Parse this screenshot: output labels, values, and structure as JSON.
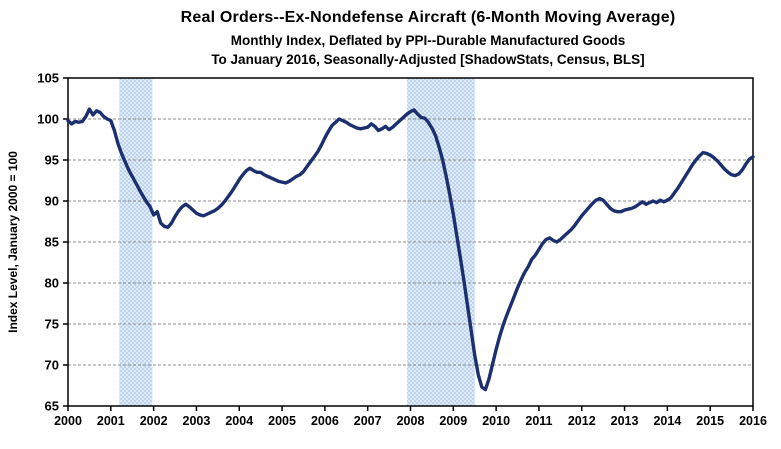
{
  "header": {
    "title": "Real Orders--Ex-Nondefense Aircraft (6-Month Moving Average)",
    "subtitle1": "Monthly Index, Deflated by PPI--Durable Manufactured Goods",
    "subtitle2": "To January 2016, Seasonally-Adjusted [ShadowStats, Census, BLS]"
  },
  "chart_data": {
    "type": "line",
    "title": "Real Orders--Ex-Nondefense Aircraft (6-Month Moving Average)",
    "subtitle": "Monthly Index, Deflated by PPI--Durable Manufactured Goods; To January 2016, Seasonally-Adjusted [ShadowStats, Census, BLS]",
    "xlabel": "",
    "ylabel": "Index Level, January 2000 = 100",
    "xlim": [
      2000,
      2016
    ],
    "ylim": [
      65,
      105
    ],
    "x_ticks": [
      2000,
      2001,
      2002,
      2003,
      2004,
      2005,
      2006,
      2007,
      2008,
      2009,
      2010,
      2011,
      2012,
      2013,
      2014,
      2015,
      2016
    ],
    "y_ticks": [
      65,
      70,
      75,
      80,
      85,
      90,
      95,
      100,
      105
    ],
    "grid": "horizontal-dashed",
    "legend": "none",
    "recession_bands": [
      {
        "start": 2001.2,
        "end": 2001.97
      },
      {
        "start": 2007.92,
        "end": 2009.5
      }
    ],
    "colors": {
      "line": "#1c2f6e",
      "band_base": "#bcd4ec",
      "band_dot": "#ffffff",
      "gridline": "#8c8c8c",
      "axis": "#000000",
      "text": "#000000"
    },
    "series": [
      {
        "name": "Real Orders Ex-Nondefense Aircraft, 6-month moving average",
        "start_year": 2000,
        "points_per_year": 12,
        "values": [
          99.8,
          99.4,
          99.7,
          99.6,
          99.7,
          100.3,
          101.2,
          100.5,
          101.0,
          100.8,
          100.3,
          100.0,
          99.8,
          98.6,
          97.0,
          95.8,
          94.8,
          93.8,
          93.0,
          92.2,
          91.4,
          90.6,
          89.9,
          89.3,
          88.3,
          88.7,
          87.3,
          86.9,
          86.8,
          87.3,
          88.1,
          88.8,
          89.3,
          89.6,
          89.3,
          88.9,
          88.5,
          88.3,
          88.2,
          88.4,
          88.6,
          88.8,
          89.1,
          89.5,
          90.0,
          90.6,
          91.2,
          91.9,
          92.6,
          93.2,
          93.7,
          94.0,
          93.7,
          93.5,
          93.5,
          93.2,
          93.0,
          92.8,
          92.6,
          92.4,
          92.3,
          92.2,
          92.4,
          92.7,
          93.0,
          93.2,
          93.6,
          94.2,
          94.8,
          95.4,
          96.0,
          96.8,
          97.7,
          98.5,
          99.2,
          99.6,
          100.0,
          99.8,
          99.6,
          99.3,
          99.1,
          98.9,
          98.8,
          98.9,
          99.0,
          99.4,
          99.1,
          98.6,
          98.8,
          99.1,
          98.7,
          99.0,
          99.4,
          99.8,
          100.2,
          100.6,
          100.9,
          101.1,
          100.6,
          100.2,
          100.1,
          99.6,
          98.9,
          98.0,
          96.6,
          95.0,
          93.0,
          90.8,
          88.4,
          85.7,
          83.0,
          80.2,
          77.2,
          74.2,
          71.2,
          68.8,
          67.3,
          67.0,
          68.3,
          70.1,
          71.9,
          73.5,
          74.9,
          76.1,
          77.2,
          78.3,
          79.4,
          80.4,
          81.3,
          82.0,
          82.9,
          83.4,
          84.1,
          84.8,
          85.3,
          85.5,
          85.2,
          85.0,
          85.3,
          85.7,
          86.1,
          86.5,
          87.0,
          87.6,
          88.2,
          88.7,
          89.2,
          89.7,
          90.1,
          90.3,
          90.1,
          89.6,
          89.1,
          88.8,
          88.7,
          88.7,
          88.9,
          89.0,
          89.1,
          89.3,
          89.6,
          89.9,
          89.6,
          89.8,
          90.0,
          89.8,
          90.1,
          89.9,
          90.1,
          90.4,
          91.0,
          91.6,
          92.3,
          93.0,
          93.7,
          94.4,
          95.0,
          95.5,
          95.9,
          95.8,
          95.6,
          95.3,
          94.9,
          94.4,
          93.9,
          93.5,
          93.2,
          93.1,
          93.3,
          93.8,
          94.5,
          95.1,
          95.4
        ]
      }
    ]
  }
}
